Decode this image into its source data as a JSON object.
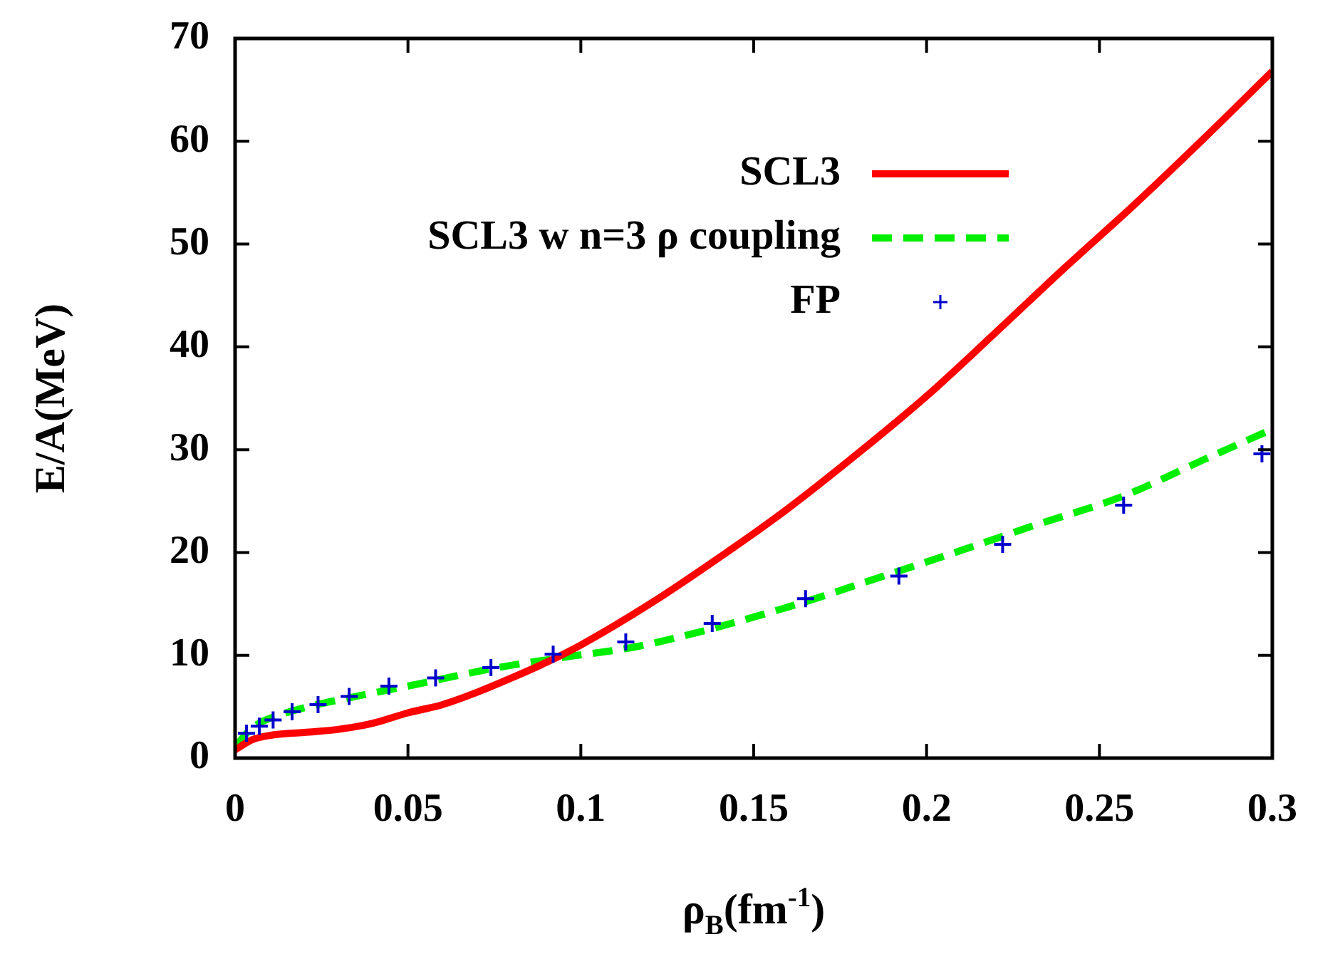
{
  "chart_data": {
    "type": "line",
    "xlabel": "ρ$_{B}$(fm$^{-1}$)",
    "ylabel": "E/A(MeV)",
    "xlim": [
      0,
      0.3
    ],
    "xticks": [
      {
        "value": 0,
        "label": "0"
      },
      0.05,
      0.1,
      0.15,
      0.2,
      0.25,
      0.3
    ],
    "ylim": [
      0,
      70
    ],
    "yticks": [
      0,
      10,
      20,
      30,
      40,
      50,
      60,
      70
    ],
    "grid": false,
    "legend": "top right",
    "series": [
      {
        "name": "SCL3",
        "color": "#ff0000",
        "line_style": "solid",
        "marker": "none",
        "x": [
          0,
          0.005,
          0.01,
          0.02,
          0.03,
          0.04,
          0.05,
          0.06,
          0.07,
          0.08,
          0.09,
          0.1,
          0.12,
          0.14,
          0.16,
          0.18,
          0.2,
          0.22,
          0.24,
          0.26,
          0.28,
          0.3
        ],
        "values": [
          0.8,
          1.8,
          2.2,
          2.5,
          2.8,
          3.4,
          4.4,
          5.2,
          6.4,
          7.8,
          9.3,
          11.0,
          15.0,
          19.5,
          24.3,
          29.6,
          35.2,
          41.4,
          47.7,
          53.8,
          60.2,
          66.8
        ]
      },
      {
        "name": "SCL3 w n=3 ρ coupling",
        "color": "#00ee00",
        "line_style": "dashed",
        "marker": "none",
        "x": [
          0,
          0.003,
          0.007,
          0.012,
          0.02,
          0.035,
          0.05,
          0.076,
          0.095,
          0.117,
          0.157,
          0.192,
          0.21,
          0.23,
          0.257,
          0.28,
          0.3
        ],
        "values": [
          1.0,
          2.3,
          3.4,
          4.1,
          4.9,
          6.0,
          7.0,
          8.8,
          9.8,
          10.9,
          14.4,
          18.2,
          20.2,
          22.5,
          25.5,
          29.0,
          32.0
        ]
      },
      {
        "name": "FP",
        "type": "scatter",
        "color": "#0000cc",
        "marker": "cross",
        "x": [
          0.0033,
          0.007,
          0.011,
          0.0165,
          0.024,
          0.033,
          0.0445,
          0.058,
          0.074,
          0.092,
          0.113,
          0.138,
          0.165,
          0.192,
          0.222,
          0.257,
          0.297
        ],
        "values": [
          2.4,
          3.1,
          3.7,
          4.5,
          5.2,
          6.0,
          7.0,
          7.8,
          8.8,
          10.1,
          11.3,
          13.1,
          15.5,
          17.7,
          20.8,
          24.6,
          29.6
        ]
      }
    ]
  }
}
